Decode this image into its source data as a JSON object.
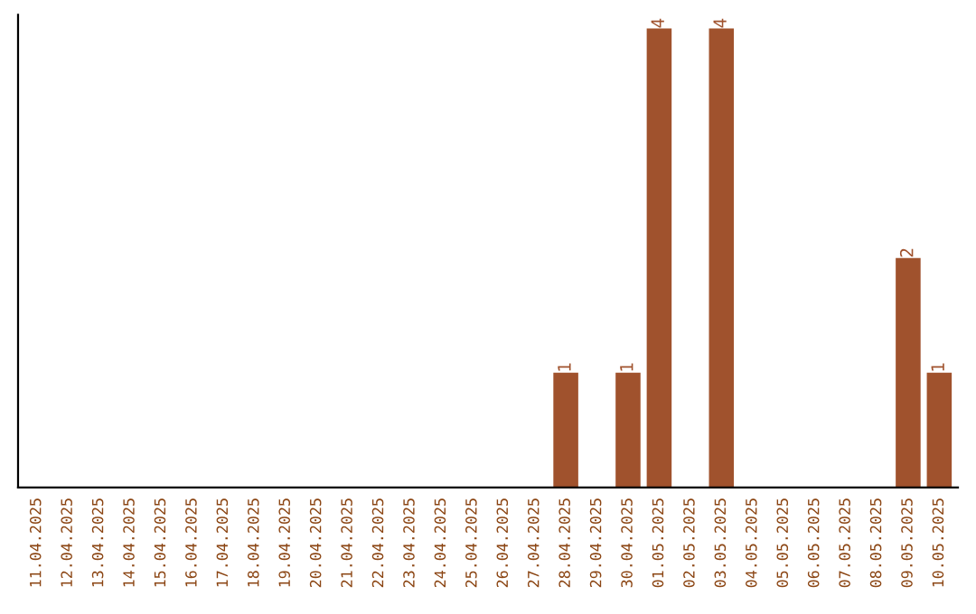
{
  "chart_data": {
    "type": "bar",
    "categories": [
      "11.04.2025",
      "12.04.2025",
      "13.04.2025",
      "14.04.2025",
      "15.04.2025",
      "16.04.2025",
      "17.04.2025",
      "18.04.2025",
      "19.04.2025",
      "20.04.2025",
      "21.04.2025",
      "22.04.2025",
      "23.04.2025",
      "24.04.2025",
      "25.04.2025",
      "26.04.2025",
      "27.04.2025",
      "28.04.2025",
      "29.04.2025",
      "30.04.2025",
      "01.05.2025",
      "02.05.2025",
      "03.05.2025",
      "04.05.2025",
      "05.05.2025",
      "06.05.2025",
      "07.05.2025",
      "08.05.2025",
      "09.05.2025",
      "10.05.2025"
    ],
    "values": [
      null,
      null,
      null,
      null,
      null,
      null,
      null,
      null,
      null,
      null,
      null,
      null,
      null,
      null,
      null,
      null,
      null,
      1,
      null,
      1,
      4,
      null,
      4,
      null,
      null,
      null,
      null,
      null,
      2,
      1
    ],
    "value_labels": [
      null,
      null,
      null,
      null,
      null,
      null,
      null,
      null,
      null,
      null,
      null,
      null,
      null,
      null,
      null,
      null,
      null,
      "1",
      null,
      "1",
      "4",
      null,
      "4",
      null,
      null,
      null,
      null,
      null,
      "2",
      "1"
    ],
    "color": "#a0522d",
    "tick_labels": "x",
    "grid": false,
    "legend": false
  }
}
